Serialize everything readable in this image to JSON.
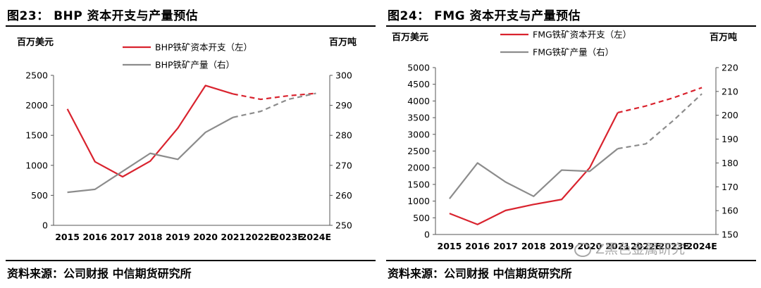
{
  "left": {
    "title": "图23：  BHP 资本开支与产量预估",
    "source": "资料来源：公司财报  中信期货研究所",
    "chart_data": {
      "type": "line",
      "categories": [
        "2015",
        "2016",
        "2017",
        "2018",
        "2019",
        "2020",
        "2021",
        "2022E",
        "2023E",
        "2024E"
      ],
      "y_left": {
        "label": "百万美元",
        "ticks": [
          "0",
          "500",
          "1000",
          "1500",
          "2000",
          "2500"
        ],
        "ylim": [
          0,
          2500
        ]
      },
      "y_right": {
        "label": "百万吨",
        "ticks": [
          "250",
          "260",
          "270",
          "280",
          "290",
          "300"
        ],
        "ylim": [
          250,
          300
        ]
      },
      "series": [
        {
          "name": "BHP铁矿资本开支（左）",
          "axis": "left",
          "color": "#d9232e",
          "values": [
            1940,
            1060,
            810,
            1070,
            1620,
            2330,
            2190,
            2100,
            2160,
            2200
          ],
          "forecast_from_index": 6
        },
        {
          "name": "BHP铁矿产量（右）",
          "axis": "right",
          "color": "#8c8c8c",
          "values": [
            261,
            262,
            268,
            274,
            272,
            281,
            286,
            288,
            292,
            294
          ],
          "forecast_from_index": 6
        }
      ],
      "legend_position": "top-center",
      "grid": false
    }
  },
  "right": {
    "title": "图24：  FMG 资本开支与产量预估",
    "source": "资料来源：公司财报  中信期货研究所",
    "chart_data": {
      "type": "line",
      "categories": [
        "2015",
        "2016",
        "2017",
        "2018",
        "2019",
        "2020",
        "2021",
        "2022E",
        "2023E",
        "2024E"
      ],
      "y_left": {
        "label": "百万美元",
        "ticks": [
          "0",
          "500",
          "1000",
          "1500",
          "2000",
          "2500",
          "3000",
          "3500",
          "4000",
          "4500",
          "5000"
        ],
        "ylim": [
          0,
          5000
        ]
      },
      "y_right": {
        "label": "百万吨",
        "ticks": [
          "150",
          "160",
          "170",
          "180",
          "190",
          "200",
          "210",
          "220"
        ],
        "ylim": [
          150,
          220
        ]
      },
      "series": [
        {
          "name": "FMG铁矿资本开支（左）",
          "axis": "left",
          "color": "#d9232e",
          "values": [
            630,
            300,
            720,
            900,
            1050,
            2000,
            3650,
            3850,
            4100,
            4400
          ],
          "forecast_from_index": 6
        },
        {
          "name": "FMG铁矿产量（右）",
          "axis": "right",
          "color": "#8c8c8c",
          "values": [
            165,
            180,
            172,
            166,
            177,
            176.5,
            186,
            188,
            198,
            209
          ],
          "forecast_from_index": 6
        }
      ],
      "legend_position": "top-center",
      "grid": false
    }
  },
  "watermark": {
    "text": "Z黑色金属研究"
  }
}
